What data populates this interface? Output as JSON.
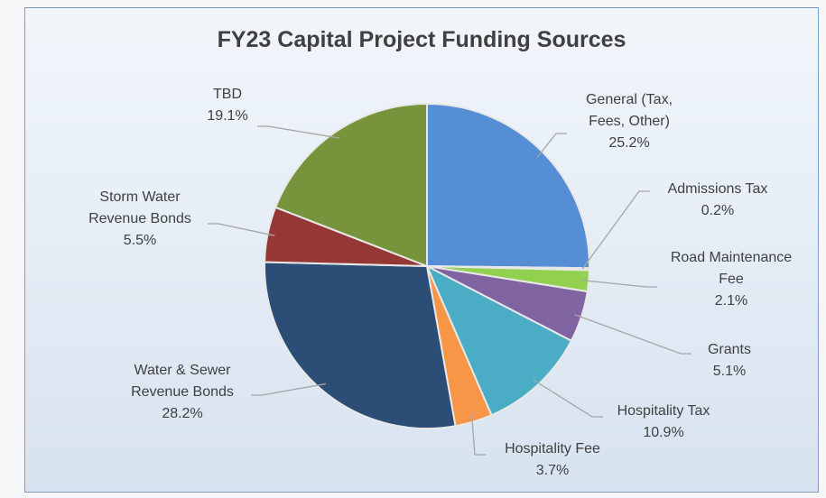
{
  "chart_data": {
    "type": "pie",
    "title": "FY23 Capital Project Funding Sources",
    "categories": [
      "General (Tax, Fees, Other)",
      "Admissions Tax",
      "Road Maintenance Fee",
      "Grants",
      "Hospitality Tax",
      "Hospitality Fee",
      "Water & Sewer Revenue Bonds",
      "Storm Water Revenue Bonds",
      "TBD"
    ],
    "values": [
      25.2,
      0.2,
      2.1,
      5.1,
      10.9,
      3.7,
      28.2,
      5.5,
      19.1
    ],
    "value_labels": [
      "25.2%",
      "0.2%",
      "2.1%",
      "5.1%",
      "10.9%",
      "3.7%",
      "28.2%",
      "5.5%",
      "19.1%"
    ],
    "colors": [
      "#558ed5",
      "#c3d69b",
      "#92d050",
      "#8064a2",
      "#4bacc6",
      "#f79646",
      "#2c4d75",
      "#953735",
      "#77933c"
    ]
  }
}
